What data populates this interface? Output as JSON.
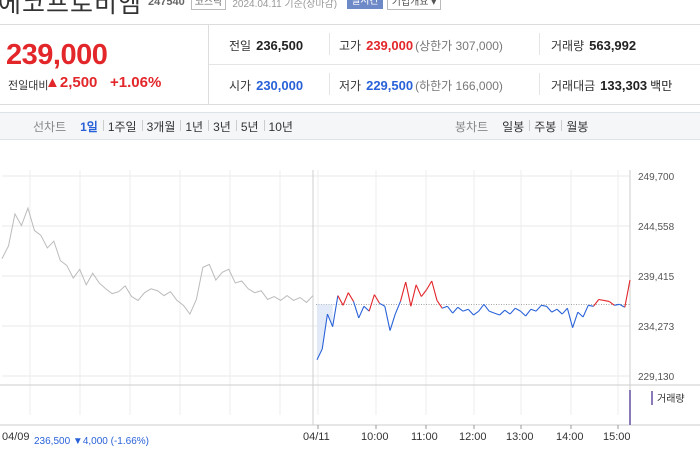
{
  "header": {
    "name": "에코프로비엠",
    "code": "247540",
    "market_badge": "코스닥",
    "date_text": "2024.04.11  기준(장마감)",
    "live_button": "실시간",
    "info_button": "기업개요 ▾"
  },
  "price": {
    "current": "239,000",
    "change_label": "전일대비",
    "change_arrow": "▲",
    "change_value": "2,500",
    "change_rate": "+1.06%"
  },
  "stats": {
    "prev_close": {
      "label": "전일",
      "value": "236,500"
    },
    "high": {
      "label": "고가",
      "value": "239,000",
      "limit": "(상한가 307,000)"
    },
    "volume": {
      "label": "거래량",
      "value": "563,992"
    },
    "open": {
      "label": "시가",
      "value": "230,000"
    },
    "low": {
      "label": "저가",
      "value": "229,500",
      "limit": "(하한가 166,000)"
    },
    "amount": {
      "label": "거래대금",
      "value": "133,303",
      "unit": "백만"
    }
  },
  "tabs": {
    "line_title": "선차트",
    "line_periods": [
      "1일",
      "1주일",
      "3개월",
      "1년",
      "3년",
      "5년",
      "10년"
    ],
    "line_active": "1일",
    "candle_title": "봉차트",
    "candle_periods": [
      "일봉",
      "주봉",
      "월봉"
    ]
  },
  "chart": {
    "y_ticks": [
      "249,700",
      "244,558",
      "239,415",
      "234,273",
      "229,130"
    ],
    "x_ticks": [
      "04/11",
      "10:00",
      "11:00",
      "12:00",
      "13:00",
      "14:00",
      "15:00"
    ],
    "prev_day_label": "04/09",
    "prev_day_close": "236,500",
    "prev_day_change": "▼4,000",
    "prev_day_rate": "(-1.66%)",
    "volume_legend": "거래량",
    "up_color": "#e2262a",
    "down_color": "#2962d8",
    "prev_line_color": "#bbbbbb"
  },
  "chart_data": {
    "type": "line",
    "title": "",
    "xlabel": "",
    "ylabel": "",
    "ylim": [
      229130,
      249700
    ],
    "reference_value": 236500,
    "series": [
      {
        "values": [
          241200,
          242500,
          245800,
          244600,
          246400,
          244100,
          243600,
          242300,
          243000,
          241000,
          240500,
          239200,
          240100,
          238500,
          239700,
          238700,
          238100,
          237600,
          237800,
          238400,
          237300,
          236900,
          237700,
          238100,
          237900,
          237400,
          237800,
          236900,
          236400,
          235500,
          237000,
          240300,
          240600,
          239000,
          239800,
          240100,
          238700,
          238900,
          238100,
          237700,
          237900,
          237000,
          237300,
          236900,
          237400,
          236900,
          237200,
          236700,
          237400
        ],
        "label_prev_day": "04/09"
      },
      {
        "values": [
          230800,
          231900,
          235500,
          234200,
          237400,
          236400,
          237700,
          236800,
          235100,
          236300,
          235800,
          237500,
          236600,
          236300,
          233800,
          235500,
          236800,
          238800,
          236300,
          238500,
          237300,
          238000,
          238900,
          236900,
          236100,
          236300,
          235600,
          236200,
          235800,
          236000,
          235400,
          235800,
          236500,
          235800,
          235600,
          235400,
          235900,
          235500,
          236100,
          235800,
          235300,
          236000,
          235800,
          236400,
          236300,
          235700,
          236000,
          235500,
          236100,
          234100,
          235700,
          235200,
          236400,
          236300,
          237000,
          236900,
          236800,
          236400,
          236500,
          236200,
          239000
        ]
      }
    ]
  }
}
